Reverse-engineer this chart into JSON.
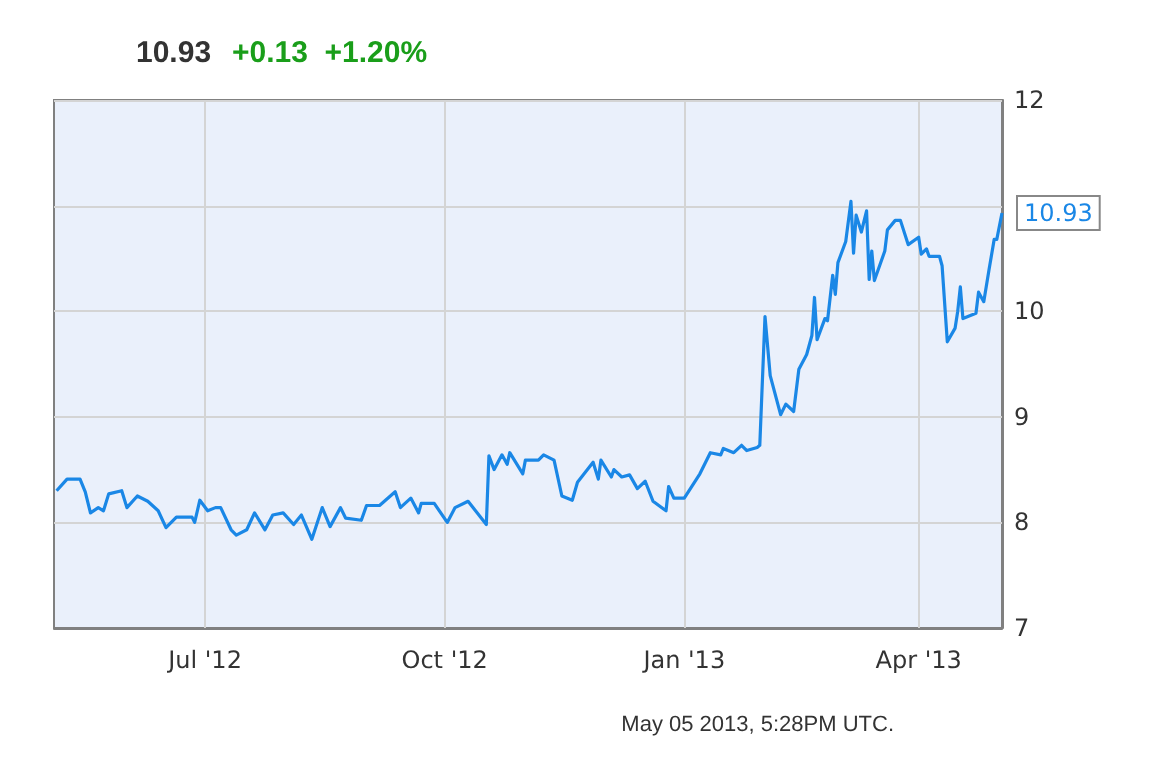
{
  "chart_data": {
    "type": "line",
    "title": "10.93",
    "subtitle": "+0.13  +1.20%",
    "x": [
      "2012-05-05",
      "2012-05-09",
      "2012-05-14",
      "2012-05-16",
      "2012-05-18",
      "2012-05-21",
      "2012-05-23",
      "2012-05-25",
      "2012-05-30",
      "2012-06-01",
      "2012-06-05",
      "2012-06-09",
      "2012-06-13",
      "2012-06-16",
      "2012-06-20",
      "2012-06-26",
      "2012-06-27",
      "2012-06-29",
      "2012-07-02",
      "2012-07-05",
      "2012-07-07",
      "2012-07-11",
      "2012-07-13",
      "2012-07-17",
      "2012-07-20",
      "2012-07-24",
      "2012-07-27",
      "2012-07-31",
      "2012-08-04",
      "2012-08-07",
      "2012-08-11",
      "2012-08-15",
      "2012-08-18",
      "2012-08-22",
      "2012-08-24",
      "2012-08-30",
      "2012-09-01",
      "2012-09-06",
      "2012-09-12",
      "2012-09-14",
      "2012-09-18",
      "2012-09-21",
      "2012-09-22",
      "2012-09-27",
      "2012-10-02",
      "2012-10-05",
      "2012-10-10",
      "2012-10-17",
      "2012-10-18",
      "2012-10-20",
      "2012-10-23",
      "2012-10-25",
      "2012-10-26",
      "2012-10-31",
      "2012-11-01",
      "2012-11-06",
      "2012-11-08",
      "2012-11-12",
      "2012-11-15",
      "2012-11-19",
      "2012-11-21",
      "2012-11-27",
      "2012-11-29",
      "2012-11-30",
      "2012-12-04",
      "2012-12-05",
      "2012-12-08",
      "2012-12-11",
      "2012-12-14",
      "2012-12-17",
      "2012-12-20",
      "2012-12-25",
      "2012-12-26",
      "2012-12-28",
      "2013-01-01",
      "2013-01-07",
      "2013-01-11",
      "2013-01-15",
      "2013-01-16",
      "2013-01-20",
      "2013-01-23",
      "2013-01-25",
      "2013-01-29",
      "2013-01-30",
      "2013-02-01",
      "2013-02-03",
      "2013-02-07",
      "2013-02-09",
      "2013-02-12",
      "2013-02-14",
      "2013-02-17",
      "2013-02-19",
      "2013-02-20",
      "2013-02-21",
      "2013-02-24",
      "2013-02-25",
      "2013-02-27",
      "2013-02-28",
      "2013-03-01",
      "2013-03-04",
      "2013-03-06",
      "2013-03-07",
      "2013-03-08",
      "2013-03-10",
      "2013-03-12",
      "2013-03-13",
      "2013-03-14",
      "2013-03-15",
      "2013-03-19",
      "2013-03-20",
      "2013-03-23",
      "2013-03-25",
      "2013-03-28",
      "2013-04-01",
      "2013-04-02",
      "2013-04-04",
      "2013-04-05",
      "2013-04-09",
      "2013-04-10",
      "2013-04-12",
      "2013-04-15",
      "2013-04-16",
      "2013-04-17",
      "2013-04-18",
      "2013-04-23",
      "2013-04-24",
      "2013-04-26",
      "2013-04-28",
      "2013-04-30",
      "2013-05-01",
      "2013-05-03"
    ],
    "series": [
      {
        "color": "#1a87e6",
        "values": [
          8.3,
          8.41,
          8.41,
          8.29,
          8.09,
          8.14,
          8.11,
          8.27,
          8.3,
          8.14,
          8.25,
          8.2,
          8.11,
          7.95,
          8.05,
          8.05,
          8.0,
          8.21,
          8.11,
          8.14,
          8.14,
          7.93,
          7.88,
          7.93,
          8.09,
          7.93,
          8.07,
          8.09,
          7.98,
          8.07,
          7.84,
          8.14,
          7.96,
          8.14,
          8.04,
          8.02,
          8.16,
          8.16,
          8.29,
          8.14,
          8.23,
          8.09,
          8.18,
          8.18,
          8.0,
          8.14,
          8.2,
          7.98,
          8.63,
          8.5,
          8.64,
          8.55,
          8.66,
          8.46,
          8.59,
          8.59,
          8.64,
          8.59,
          8.25,
          8.21,
          8.38,
          8.57,
          8.41,
          8.59,
          8.43,
          8.5,
          8.43,
          8.45,
          8.32,
          8.39,
          8.2,
          8.11,
          8.34,
          8.23,
          8.23,
          8.46,
          8.66,
          8.64,
          8.7,
          8.66,
          8.73,
          8.68,
          8.71,
          8.73,
          9.95,
          9.39,
          9.02,
          9.12,
          9.05,
          9.45,
          9.59,
          9.77,
          10.13,
          9.73,
          9.93,
          9.91,
          10.34,
          10.16,
          10.46,
          10.66,
          11.04,
          10.55,
          10.91,
          10.75,
          10.95,
          10.3,
          10.57,
          10.29,
          10.57,
          10.77,
          10.86,
          10.86,
          10.63,
          10.7,
          10.54,
          10.59,
          10.52,
          10.52,
          10.43,
          9.71,
          9.84,
          10.0,
          10.23,
          9.93,
          9.98,
          10.18,
          10.09,
          10.39,
          10.68,
          10.68,
          10.93
        ]
      }
    ],
    "xlim": [
      "2012-05-04",
      "2013-05-03"
    ],
    "xticks": [
      {
        "value": "2012-07-01",
        "label": "Jul '12"
      },
      {
        "value": "2012-10-01",
        "label": "Oct '12"
      },
      {
        "value": "2013-01-01",
        "label": "Jan '13"
      },
      {
        "value": "2013-04-01",
        "label": "Apr '13"
      }
    ],
    "ylim": [
      7,
      12
    ],
    "yticks": [
      7,
      8,
      9,
      10,
      {
        "value": 11,
        "label": null
      },
      12
    ],
    "grid": true,
    "marker": "none",
    "line_style": "solid",
    "annotations": [
      {
        "text": "10.93",
        "x": "2013-05-03",
        "y": 10.93
      },
      "May 05 2013, 5:28PM UTC."
    ]
  }
}
